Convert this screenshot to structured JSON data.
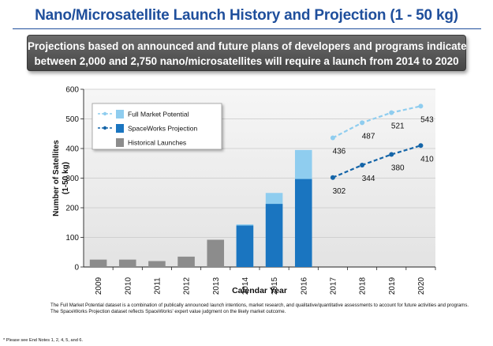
{
  "slide": {
    "title": "Nano/Microsatellite Launch History and Projection (1 - 50 kg)",
    "banner_line1": "Projections based on announced and future plans of developers and programs indicate",
    "banner_line2": "between 2,000 and 2,750 nano/microsatellites will require a launch from 2014 to 2020",
    "footnote_line1": "The Full Market Potential dataset is a combination of publically announced launch intentions, market research, and qualitative/quantitative assessments to account for future activities and programs.",
    "footnote_line2": "The SpaceWorks Projection dataset reflects SpaceWorks' expert value judgment on the likely market outcome.",
    "endnote": "* Please see End Notes 1, 2, 4, 5, and 6."
  },
  "colors": {
    "title": "#1f4f9c",
    "historical": "#8c8c8c",
    "spaceworks": "#1a75c0",
    "full_market": "#8fcdef",
    "spaceworks_line": "#1565a8",
    "full_market_line": "#8fcdef",
    "plot_bg": "#eeeeee",
    "banner": "#565656"
  },
  "chart_data": {
    "type": "bar",
    "xlabel": "Calendar Year",
    "ylabel_line1": "Number of Satellites",
    "ylabel_line2": "(1-50 kg)",
    "ylim": [
      0,
      600
    ],
    "yticks": [
      "0",
      "100",
      "200",
      "300",
      "400",
      "500",
      "600"
    ],
    "categories": [
      "2009",
      "2010",
      "2011",
      "2012",
      "2013",
      "2014",
      "2015",
      "2016",
      "2017",
      "2018",
      "2019",
      "2020"
    ],
    "grid": true,
    "legend_position": "top-left",
    "legend": [
      {
        "name": "Full Market Potential",
        "kind": "full"
      },
      {
        "name": "SpaceWorks Projection",
        "kind": "spaceworks"
      },
      {
        "name": "Historical Launches",
        "kind": "historical"
      }
    ],
    "historical": [
      {
        "x": "2009",
        "value": 25
      },
      {
        "x": "2010",
        "value": 25
      },
      {
        "x": "2011",
        "value": 20
      },
      {
        "x": "2012",
        "value": 35
      },
      {
        "x": "2013",
        "value": 92
      }
    ],
    "spaceworks_bars": [
      {
        "x": "2014",
        "value": 140
      },
      {
        "x": "2015",
        "value": 213
      },
      {
        "x": "2016",
        "value": 297
      }
    ],
    "full_market_bars": [
      {
        "x": "2014",
        "value": 144
      },
      {
        "x": "2015",
        "value": 250
      },
      {
        "x": "2016",
        "value": 395
      }
    ],
    "spaceworks_line": {
      "x": [
        "2017",
        "2018",
        "2019",
        "2020"
      ],
      "values": [
        302,
        344,
        380,
        410
      ],
      "labels": [
        "302",
        "344",
        "380",
        "410"
      ]
    },
    "full_market_line": {
      "x": [
        "2017",
        "2018",
        "2019",
        "2020"
      ],
      "values": [
        436,
        487,
        521,
        543
      ],
      "labels": [
        "436",
        "487",
        "521",
        "543"
      ]
    }
  }
}
